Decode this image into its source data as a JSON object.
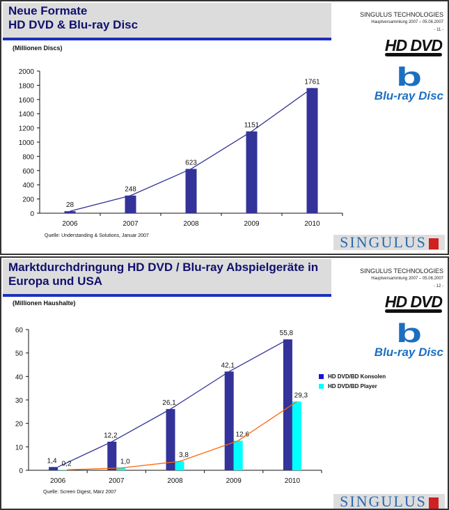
{
  "slides": [
    {
      "title_line1": "Neue Formate",
      "title_line2": "HD DVD & Blu-ray Disc",
      "company": "SINGULUS TECHNOLOGIES",
      "event": "Hauptversammlung 2007 – 05.06.2007",
      "page": "- 11 -",
      "unit": "(Millionen Discs)",
      "source": "Quelle: Understanding & Solutions, Januar 2007"
    },
    {
      "title_line1": "Marktdurchdringung HD DVD / Blu-ray Abspielgeräte in",
      "title_line2": "Europa und USA",
      "company": "SINGULUS TECHNOLOGIES",
      "event": "Hauptversammlung 2007 – 05.06.2007",
      "page": "- 12 -",
      "unit": "(Millionen Haushalte)",
      "source": "Quelle: Screen Digest, März 2007"
    }
  ],
  "logos": {
    "hddvd": "HD DVD",
    "bluray": "Blu-ray Disc",
    "singulus": "SINGULUS"
  },
  "colors": {
    "dark_bar": "#333399",
    "cyan_bar": "#00ffff",
    "trend1": "#333399",
    "trend2": "#ff6600",
    "accent": "#1a2fc0"
  },
  "chart_data": [
    {
      "type": "bar",
      "categories": [
        "2006",
        "2007",
        "2008",
        "2009",
        "2010"
      ],
      "ylim": [
        0,
        2000
      ],
      "yticks": [
        0,
        200,
        400,
        600,
        800,
        1000,
        1200,
        1400,
        1600,
        1800,
        2000
      ],
      "series": [
        {
          "values": [
            28,
            248,
            623,
            1151,
            1761
          ],
          "labels": [
            "28",
            "248",
            "623",
            "1151",
            "1761"
          ],
          "trendline": true
        }
      ]
    },
    {
      "type": "bar",
      "categories": [
        "2006",
        "2007",
        "2008",
        "2009",
        "2010"
      ],
      "ylim": [
        0,
        60
      ],
      "yticks": [
        0,
        10,
        20,
        30,
        40,
        50,
        60
      ],
      "legend": "right",
      "series": [
        {
          "name": "HD DVD/BD Konsolen",
          "values": [
            1.4,
            12.2,
            26.1,
            42.1,
            55.8
          ],
          "labels": [
            "1,4",
            "12,2",
            "26,1",
            "42,1",
            "55,8"
          ],
          "trendline": true
        },
        {
          "name": "HD DVD/BD Player",
          "values": [
            0.2,
            1.0,
            3.8,
            12.6,
            29.3
          ],
          "labels": [
            "0,2",
            "1,0",
            "3,8",
            "12,6",
            "29,3"
          ],
          "trendline": true
        }
      ]
    }
  ]
}
